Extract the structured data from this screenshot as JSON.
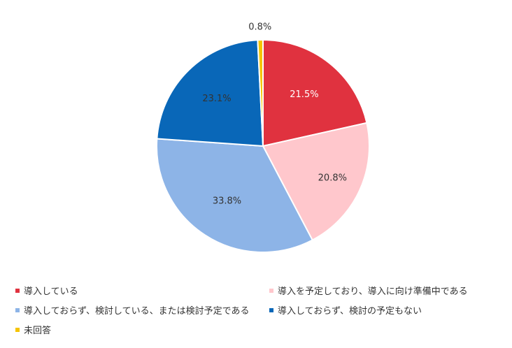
{
  "chart_data": {
    "type": "pie",
    "title": "",
    "legend_position": "bottom",
    "slices": [
      {
        "label": "導入している",
        "value": 21.5,
        "value_label": "21.5%",
        "color": "#E0323F"
      },
      {
        "label": "導入を予定しており、導入に向け準備中である",
        "value": 20.8,
        "value_label": "20.8%",
        "color": "#FFC7CC"
      },
      {
        "label": "導入しておらず、検討している、または検討予定である",
        "value": 33.8,
        "value_label": "33.8%",
        "color": "#8DB4E7"
      },
      {
        "label": "導入しておらず、検討の予定もない",
        "value": 23.1,
        "value_label": "23.1%",
        "color": "#0967B8"
      },
      {
        "label": "未回答",
        "value": 0.8,
        "value_label": "0.8%",
        "color": "#F5C400"
      }
    ]
  }
}
